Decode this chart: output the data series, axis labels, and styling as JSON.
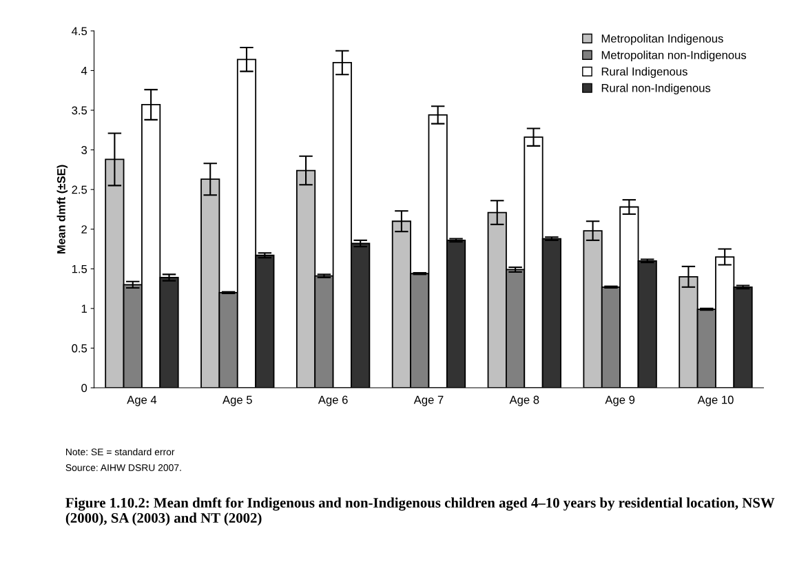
{
  "chart_data": {
    "type": "bar",
    "title": "Figure 1.10.2: Mean dmft for Indigenous and non-Indigenous children aged 4–10 years by residential location, NSW (2000), SA (2003) and NT (2002)",
    "ylabel": "Mean dmft (±SE)",
    "categories": [
      "Age 4",
      "Age 5",
      "Age 6",
      "Age 7",
      "Age 8",
      "Age 9",
      "Age 10"
    ],
    "series": [
      {
        "name": "Metropolitan Indigenous",
        "color": "#c0c0c0",
        "values": [
          2.88,
          2.63,
          2.74,
          2.1,
          2.21,
          1.98,
          1.4
        ],
        "errors": [
          0.33,
          0.2,
          0.18,
          0.13,
          0.15,
          0.12,
          0.13
        ]
      },
      {
        "name": "Metropolitan non-Indigenous",
        "color": "#808080",
        "values": [
          1.3,
          1.2,
          1.41,
          1.44,
          1.49,
          1.27,
          0.99
        ],
        "errors": [
          0.04,
          0.01,
          0.02,
          0.01,
          0.03,
          0.01,
          0.01
        ]
      },
      {
        "name": "Rural Indigenous",
        "color": "#ffffff",
        "values": [
          3.57,
          4.14,
          4.1,
          3.44,
          3.16,
          2.28,
          1.65
        ],
        "errors": [
          0.19,
          0.15,
          0.15,
          0.11,
          0.11,
          0.09,
          0.1
        ]
      },
      {
        "name": "Rural non-Indigenous",
        "color": "#333333",
        "values": [
          1.39,
          1.67,
          1.82,
          1.86,
          1.88,
          1.6,
          1.27
        ],
        "errors": [
          0.04,
          0.03,
          0.04,
          0.02,
          0.02,
          0.02,
          0.02
        ]
      }
    ],
    "ylim": [
      0,
      4.5
    ],
    "yticks": [
      0,
      0.5,
      1,
      1.5,
      2,
      2.5,
      3,
      3.5,
      4,
      4.5
    ],
    "legend": "top right",
    "grid": false,
    "annotations": [
      "Note: SE = standard error",
      "Source: AIHW DSRU 2007."
    ]
  }
}
